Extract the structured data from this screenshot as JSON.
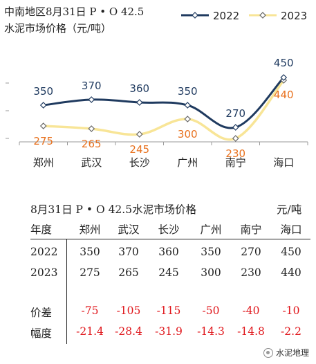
{
  "header": {
    "title_line1": "中南地区8月31日  P • O 42.5",
    "title_line2": "水泥市场价格（元/吨）"
  },
  "colors": {
    "series_2022": "#1f3a5f",
    "series_2023": "#f8e597",
    "label_2022": "#1f3a5f",
    "label_2023": "#e8711e",
    "negative": "#e0161b"
  },
  "chart_data": {
    "type": "line",
    "categories": [
      "郑州",
      "武汉",
      "长沙",
      "广州",
      "南宁",
      "海口"
    ],
    "series": [
      {
        "name": "2022",
        "values": [
          350,
          370,
          360,
          350,
          270,
          450
        ]
      },
      {
        "name": "2023",
        "values": [
          275,
          265,
          245,
          300,
          230,
          440
        ]
      }
    ],
    "legend_position": "top-right",
    "marker": "diamond",
    "data_labels": true,
    "title": "中南地区8月31日  P • O 42.5 水泥市场价格（元/吨）",
    "xlabel": "",
    "ylabel": "",
    "ylim": [
      200,
      460
    ],
    "grid": false
  },
  "table": {
    "title": "8月31日 P • O 42.5水泥市场价格",
    "unit": "元/吨",
    "corner": "年度",
    "columns": [
      "郑州",
      "武汉",
      "长沙",
      "广州",
      "南宁",
      "海口"
    ],
    "rows": [
      {
        "label": "2022",
        "values": [
          "350",
          "370",
          "360",
          "350",
          "270",
          "450"
        ]
      },
      {
        "label": "2023",
        "values": [
          "275",
          "265",
          "245",
          "300",
          "230",
          "440"
        ]
      },
      {
        "label": "价差",
        "values": [
          "-75",
          "-105",
          "-115",
          "-50",
          "-40",
          "-10"
        ]
      },
      {
        "label": "幅度",
        "values": [
          "-21.4",
          "-28.4",
          "-31.9",
          "-14.3",
          "-14.8",
          "-2.2"
        ]
      }
    ]
  },
  "watermark": {
    "text": "水泥地理",
    "icon": "wechat-logo-icon"
  }
}
